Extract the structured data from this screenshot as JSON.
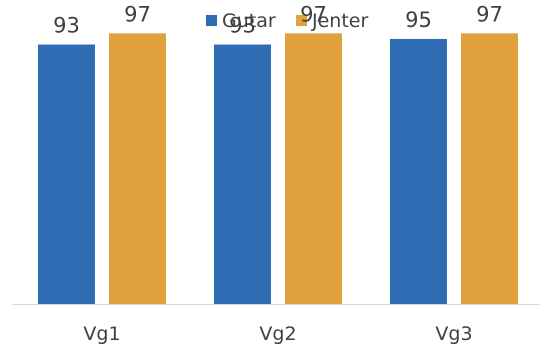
{
  "chart_data": {
    "type": "bar",
    "categories": [
      "Vg1",
      "Vg2",
      "Vg3"
    ],
    "series": [
      {
        "name": "Gutar",
        "values": [
          93,
          93,
          95
        ],
        "color": "#2e6db4"
      },
      {
        "name": "Jenter",
        "values": [
          97,
          97,
          97
        ],
        "color": "#e0a23c"
      }
    ],
    "ylim": [
      0,
      100
    ],
    "grid": false,
    "legend": "top-center",
    "axis_color": "#d9d9d9",
    "text_color": "#404040"
  }
}
